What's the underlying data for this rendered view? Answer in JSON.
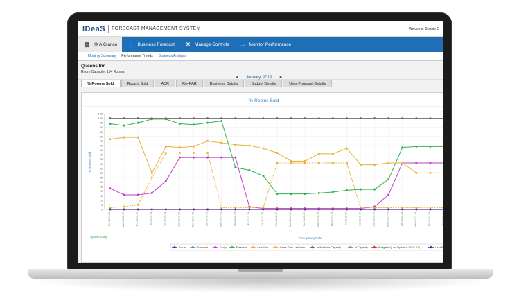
{
  "app": {
    "logo": "IDeaS",
    "title": "FORECAST MANAGEMENT SYSTEM",
    "welcome": "Welcome: Bonnie C"
  },
  "nav": {
    "items": [
      {
        "label": "@ A Glance",
        "icon": "grid-icon",
        "active": true
      },
      {
        "label": "Business Forecast",
        "icon": "person-chart-icon",
        "active": false
      },
      {
        "label": "Manage Controls",
        "icon": "wrench-icon",
        "active": false
      },
      {
        "label": "Monitor Performance",
        "icon": "monitor-icon",
        "active": false
      }
    ]
  },
  "subnav": {
    "items": [
      {
        "label": "Monthly Summary",
        "active": false
      },
      {
        "label": "Performance Trends",
        "active": true
      },
      {
        "label": "Business Analysis",
        "active": false
      }
    ]
  },
  "hotel": {
    "name": "Queens Inn",
    "capacity": "Room Capacity: 154 Rooms"
  },
  "period": {
    "month": "January, 2019",
    "prev": "◄",
    "next": "►"
  },
  "tabs": [
    {
      "label": "% Rooms Sold",
      "active": true
    },
    {
      "label": "Rooms Sold",
      "active": false
    },
    {
      "label": "ADR",
      "active": false
    },
    {
      "label": "RevPAR",
      "active": false
    },
    {
      "label": "Business Details",
      "active": false
    },
    {
      "label": "Budget Details",
      "active": false
    },
    {
      "label": "User Forecast Details",
      "active": false
    }
  ],
  "chart_data": {
    "type": "line",
    "title": "% Rooms Sold",
    "ylabel": "% Rooms Sold",
    "xlabel": "Occupancy Date",
    "footnote": "System Today",
    "ylim": [
      0,
      100
    ],
    "yticks": [
      0,
      5,
      10,
      15,
      20,
      25,
      30,
      35,
      40,
      45,
      50,
      55,
      60,
      65,
      70,
      75,
      80,
      85,
      90,
      95,
      100,
      105
    ],
    "x": [
      "Tue 01-01-19",
      "Wed 01-02-19",
      "Thu 01-03-19",
      "Fri 01-04-19",
      "Sat 01-05-19",
      "Sun 01-06-19",
      "Mon 01-07-19",
      "Tue 01-08-19",
      "Wed 01-09-19",
      "Thu 01-10-19",
      "Fri 01-11-19",
      "Sat 01-12-19",
      "Sun 01-13-19",
      "Mon 01-14-19",
      "Tue 01-15-19",
      "Wed 01-16-19",
      "Thu 01-17-19",
      "Fri 01-18-19",
      "Sat 01-19-19",
      "Sun 01-20-19",
      "Mon 01-21-19",
      "Tue 01-22-19",
      "Wed 01-23-19",
      "Thu 01-24-19",
      "Fri 01-25-19"
    ],
    "grid": true,
    "legend_position": "bottom",
    "series": [
      {
        "name": "Actual",
        "color": "#1f4e9a",
        "dash": false,
        "values": [
          null,
          null,
          null,
          null,
          null,
          null,
          null,
          null,
          null,
          null,
          null,
          null,
          null,
          null,
          null,
          null,
          null,
          null,
          null,
          null,
          null,
          null,
          null,
          null,
          null
        ]
      },
      {
        "name": "Transient",
        "color": "#3a8fd6",
        "dash": false,
        "values": [
          null,
          null,
          null,
          null,
          null,
          null,
          null,
          null,
          null,
          null,
          null,
          null,
          null,
          null,
          null,
          null,
          null,
          null,
          null,
          null,
          null,
          null,
          null,
          null,
          null
        ]
      },
      {
        "name": "Group",
        "color": "#c23bcf",
        "dash": false,
        "values": [
          23,
          16,
          16,
          18,
          31,
          57,
          57,
          57,
          57,
          57,
          3,
          1,
          1,
          1,
          1,
          1,
          1,
          1,
          1,
          3,
          16,
          51,
          51,
          51,
          51
        ]
      },
      {
        "name": "Forecast",
        "color": "#2fb34a",
        "dash": false,
        "values": [
          94,
          92,
          95,
          99,
          99,
          94,
          93,
          95,
          97,
          46,
          43,
          37,
          17,
          17,
          17,
          18,
          19,
          21,
          22,
          22,
          33,
          68,
          69,
          69,
          69
        ]
      },
      {
        "name": "Last Year",
        "color": "#e8b13a",
        "dash": false,
        "values": [
          77,
          79,
          79,
          40,
          69,
          68,
          69,
          75,
          73,
          71,
          70,
          67,
          62,
          53,
          53,
          61,
          61,
          67,
          49,
          49,
          51,
          51,
          40,
          40,
          40
        ]
      },
      {
        "name": "Same Time Last Year",
        "color": "#e8b13a",
        "dash": true,
        "values": [
          2,
          3,
          5,
          35,
          62,
          62,
          62,
          62,
          2,
          2,
          2,
          2,
          51,
          51,
          51,
          51,
          51,
          51,
          2,
          2,
          2,
          2,
          2,
          2,
          2
        ]
      },
      {
        "name": "% Available Capacity",
        "color": "#6b6b6b",
        "dash": false,
        "values": [
          100,
          100,
          100,
          100,
          100,
          100,
          100,
          100,
          100,
          100,
          100,
          100,
          100,
          100,
          100,
          100,
          100,
          100,
          100,
          100,
          100,
          100,
          100,
          100,
          100
        ]
      },
      {
        "name": "% Capacity",
        "color": "#888888",
        "dash": false,
        "values": [
          null,
          null,
          null,
          null,
          null,
          null,
          null,
          null,
          null,
          null,
          null,
          null,
          null,
          null,
          null,
          null,
          null,
          null,
          null,
          null,
          null,
          null,
          null,
          null,
          null
        ]
      },
      {
        "name": "Budgeted (Last Updated: 06-11-17)",
        "color": "#d42a2a",
        "dash": false,
        "values": [
          null,
          null,
          null,
          null,
          null,
          null,
          null,
          null,
          null,
          null,
          null,
          null,
          null,
          null,
          null,
          null,
          null,
          null,
          null,
          null,
          null,
          null,
          null,
          null,
          null
        ]
      },
      {
        "name": "User Forecast",
        "color": "#5b2a86",
        "dash": false,
        "values": [
          0,
          0,
          0,
          0,
          0,
          0,
          0,
          0,
          0,
          0,
          0,
          0,
          0,
          0,
          0,
          0,
          0,
          0,
          0,
          0,
          0,
          0,
          0,
          0,
          0
        ]
      }
    ]
  }
}
